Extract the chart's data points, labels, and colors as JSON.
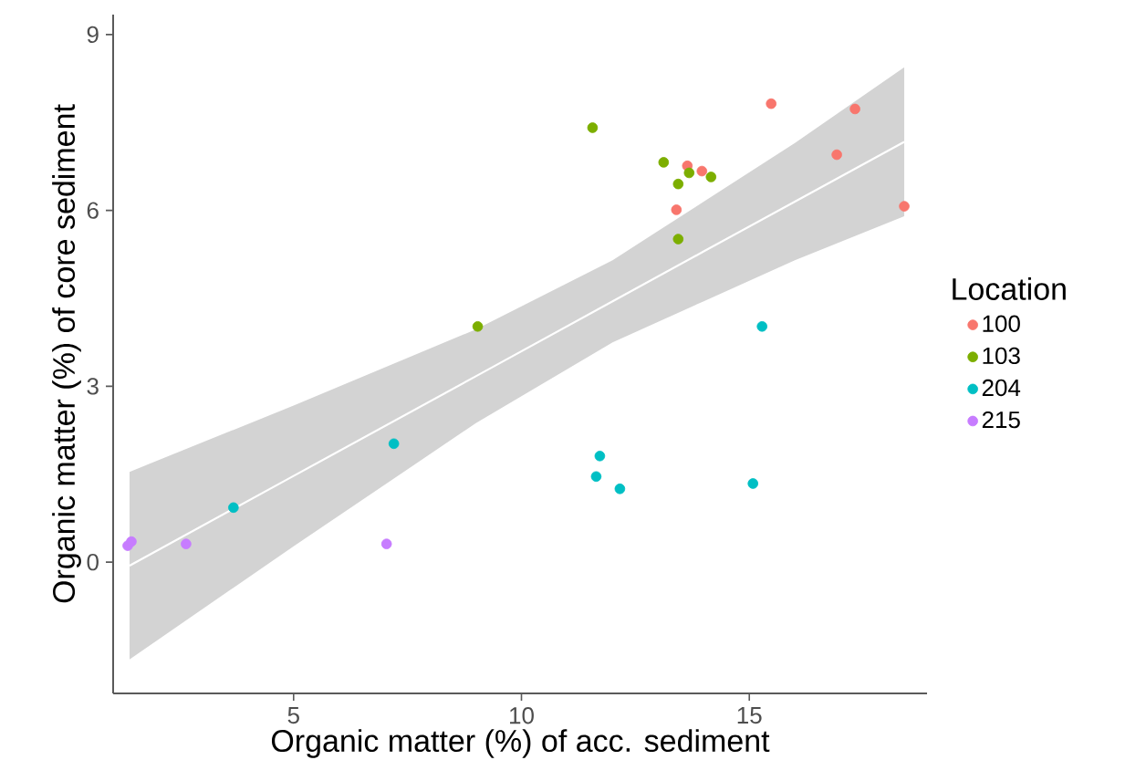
{
  "chart_data": {
    "type": "scatter",
    "xlabel": "Organic matter (%) of acc. sediment",
    "ylabel": "Organic matter (%) of core sediment",
    "legend_title": "Location",
    "legend": "right",
    "marker": "circle",
    "xlim": [
      1.04,
      18.9
    ],
    "ylim": [
      -2.24,
      9.34
    ],
    "xticks": [
      5,
      10,
      15
    ],
    "yticks": [
      0,
      3,
      6,
      9
    ],
    "series": [
      {
        "type": "line",
        "marker": "none",
        "color": "#ffffff",
        "x": [
          1.4,
          5,
          9,
          12,
          14,
          16,
          18.4
        ],
        "values": [
          -0.06,
          1.47,
          3.17,
          4.45,
          5.3,
          6.15,
          7.17
        ],
        "lower": [
          -1.66,
          0.27,
          2.37,
          3.75,
          4.45,
          5.15,
          5.9
        ],
        "upper": [
          1.54,
          2.67,
          3.97,
          5.15,
          6.15,
          7.15,
          8.44
        ]
      },
      {
        "name": "100",
        "color": "#f8766d",
        "x": [
          15.48,
          17.32,
          16.92,
          18.4,
          13.64,
          13.96,
          13.4
        ],
        "values": [
          7.82,
          7.73,
          6.95,
          6.07,
          6.76,
          6.67,
          6.01
        ]
      },
      {
        "name": "103",
        "color": "#7cae00",
        "x": [
          11.56,
          13.12,
          13.68,
          13.44,
          14.16,
          13.44,
          9.04
        ],
        "values": [
          7.41,
          6.82,
          6.64,
          6.45,
          6.57,
          5.51,
          4.02
        ]
      },
      {
        "name": "204",
        "color": "#00bfc4",
        "x": [
          15.28,
          7.2,
          3.68,
          11.72,
          11.64,
          12.16,
          15.08
        ],
        "values": [
          4.02,
          2.02,
          0.93,
          1.81,
          1.46,
          1.25,
          1.34
        ]
      },
      {
        "name": "215",
        "color": "#c77cff",
        "x": [
          1.36,
          1.44,
          2.64,
          7.04
        ],
        "values": [
          0.28,
          0.35,
          0.31,
          0.31
        ]
      }
    ]
  }
}
